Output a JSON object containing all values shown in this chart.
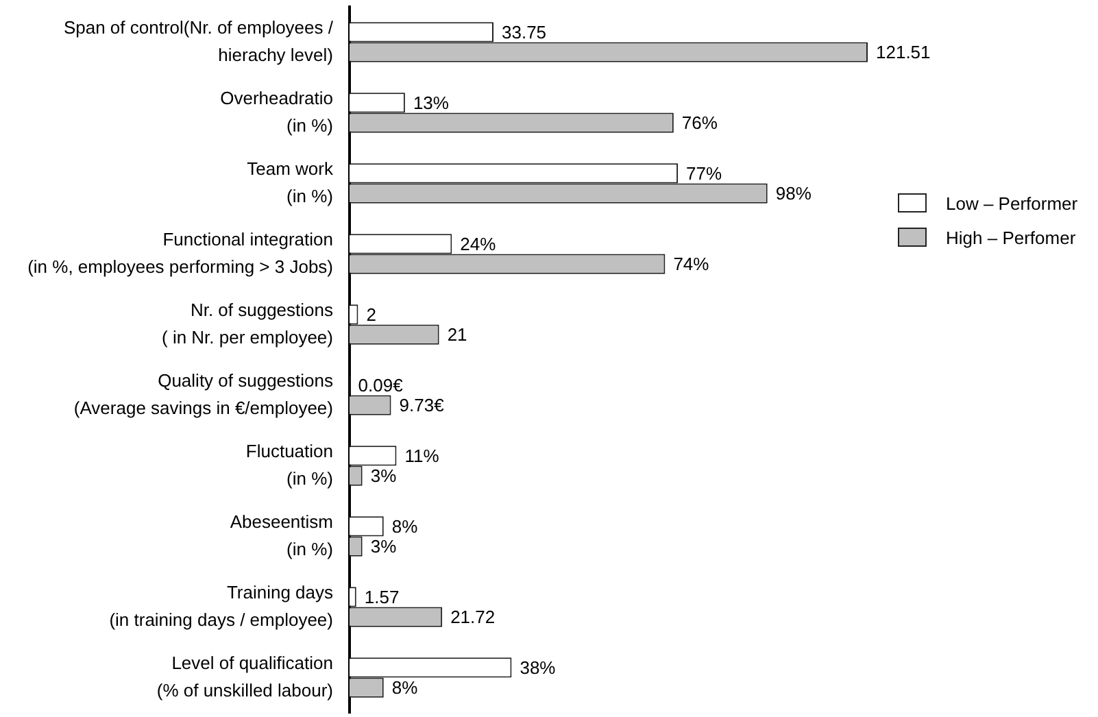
{
  "chart_data": {
    "type": "bar",
    "orientation": "horizontal",
    "tick_labels": "y",
    "legend": "right",
    "categories": [
      "Span of control(Nr. of employees /\nhierachy level)",
      "Overheadratio\n(in %)",
      "Team work\n(in %)",
      "Functional integration\n(in %, employees performing > 3 Jobs)",
      "Nr. of suggestions\n( in Nr. per employee)",
      "Quality of suggestions\n(Average savings in €/employee)",
      "Fluctuation\n(in %)",
      "Abeseentism\n(in %)",
      "Training days\n(in training days / employee)",
      "Level of qualification\n(% of unskilled labour)"
    ],
    "series": [
      {
        "name": "Low – Performer",
        "color": "#ffffff",
        "values": [
          33.75,
          13,
          77,
          24,
          2,
          0.09,
          11,
          8,
          1.57,
          38
        ],
        "value_labels": [
          "33.75",
          "13%",
          "77%",
          "24%",
          "2",
          "0.09€",
          "11%",
          "8%",
          "1.57",
          "38%"
        ]
      },
      {
        "name": "High – Perfomer",
        "color": "#c0c0c0",
        "values": [
          121.51,
          76,
          98,
          74,
          21,
          9.73,
          3,
          3,
          21.72,
          8
        ],
        "value_labels": [
          "121.51",
          "76%",
          "98%",
          "74%",
          "21",
          "9.73€",
          "3%",
          "3%",
          "21.72",
          "8%"
        ]
      }
    ]
  }
}
